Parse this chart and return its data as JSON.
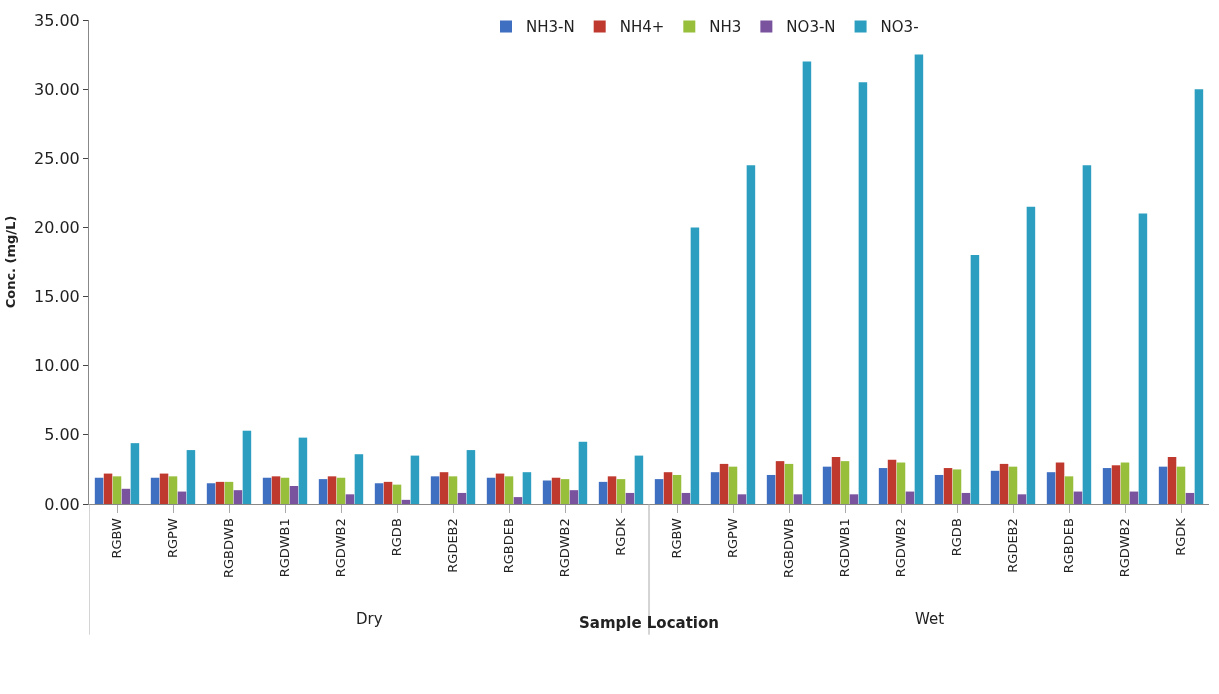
{
  "chart_data": {
    "type": "bar",
    "xlabel": "Sample Location",
    "ylabel": "Conc. (mg/L)",
    "categories": [
      "RGBW",
      "RGPW",
      "RGBDWB",
      "RGDWB1",
      "RGDWB2",
      "RGDB",
      "RGDEB2",
      "RGBDEB",
      "RGDWB2",
      "RGDK",
      "RGBW",
      "RGPW",
      "RGBDWB",
      "RGDWB1",
      "RGDWB2",
      "RGDB",
      "RGDEB2",
      "RGBDEB",
      "RGDWB2",
      "RGDK"
    ],
    "series": [
      {
        "name": "NH3-N",
        "color": "#3f6fc0",
        "values": [
          1.9,
          1.9,
          1.5,
          1.9,
          1.8,
          1.5,
          2.0,
          1.9,
          1.7,
          1.6,
          1.8,
          2.3,
          2.1,
          2.7,
          2.6,
          2.1,
          2.4,
          2.3,
          2.6,
          2.7
        ]
      },
      {
        "name": "NH4+",
        "color": "#c0392f",
        "values": [
          2.2,
          2.2,
          1.6,
          2.0,
          2.0,
          1.6,
          2.3,
          2.2,
          1.9,
          2.0,
          2.3,
          2.9,
          3.1,
          3.4,
          3.2,
          2.6,
          2.9,
          3.0,
          2.8,
          3.4
        ]
      },
      {
        "name": "NH3",
        "color": "#98bf3c",
        "values": [
          2.0,
          2.0,
          1.6,
          1.9,
          1.9,
          1.4,
          2.0,
          2.0,
          1.8,
          1.8,
          2.1,
          2.7,
          2.9,
          3.1,
          3.0,
          2.5,
          2.7,
          2.0,
          3.0,
          2.7
        ]
      },
      {
        "name": "NO3-N",
        "color": "#7a539f",
        "values": [
          1.1,
          0.9,
          1.0,
          1.3,
          0.7,
          0.3,
          0.8,
          0.5,
          1.0,
          0.8,
          0.8,
          0.7,
          0.7,
          0.7,
          0.9,
          0.8,
          0.7,
          0.9,
          0.9,
          0.8
        ]
      },
      {
        "name": "NO3-",
        "color": "#2c9fc0",
        "values": [
          4.4,
          3.9,
          5.3,
          4.8,
          3.6,
          3.5,
          3.9,
          2.3,
          4.5,
          3.5,
          20.0,
          24.5,
          32.0,
          30.5,
          32.5,
          18.0,
          21.5,
          24.5,
          21.0,
          30.0
        ]
      }
    ],
    "annotations": [
      "Dry",
      "Wet"
    ],
    "ylim": [
      0,
      35
    ],
    "yticks": [
      {
        "value": 0,
        "label": "0.00"
      },
      {
        "value": 5,
        "label": "5.00"
      },
      {
        "value": 10,
        "label": "10.00"
      },
      {
        "value": 15,
        "label": "15.00"
      },
      {
        "value": 20,
        "label": "20.00"
      },
      {
        "value": 25,
        "label": "25.00"
      },
      {
        "value": 30,
        "label": "30.00"
      },
      {
        "value": 35,
        "label": "35.00"
      }
    ],
    "legend": "top"
  }
}
